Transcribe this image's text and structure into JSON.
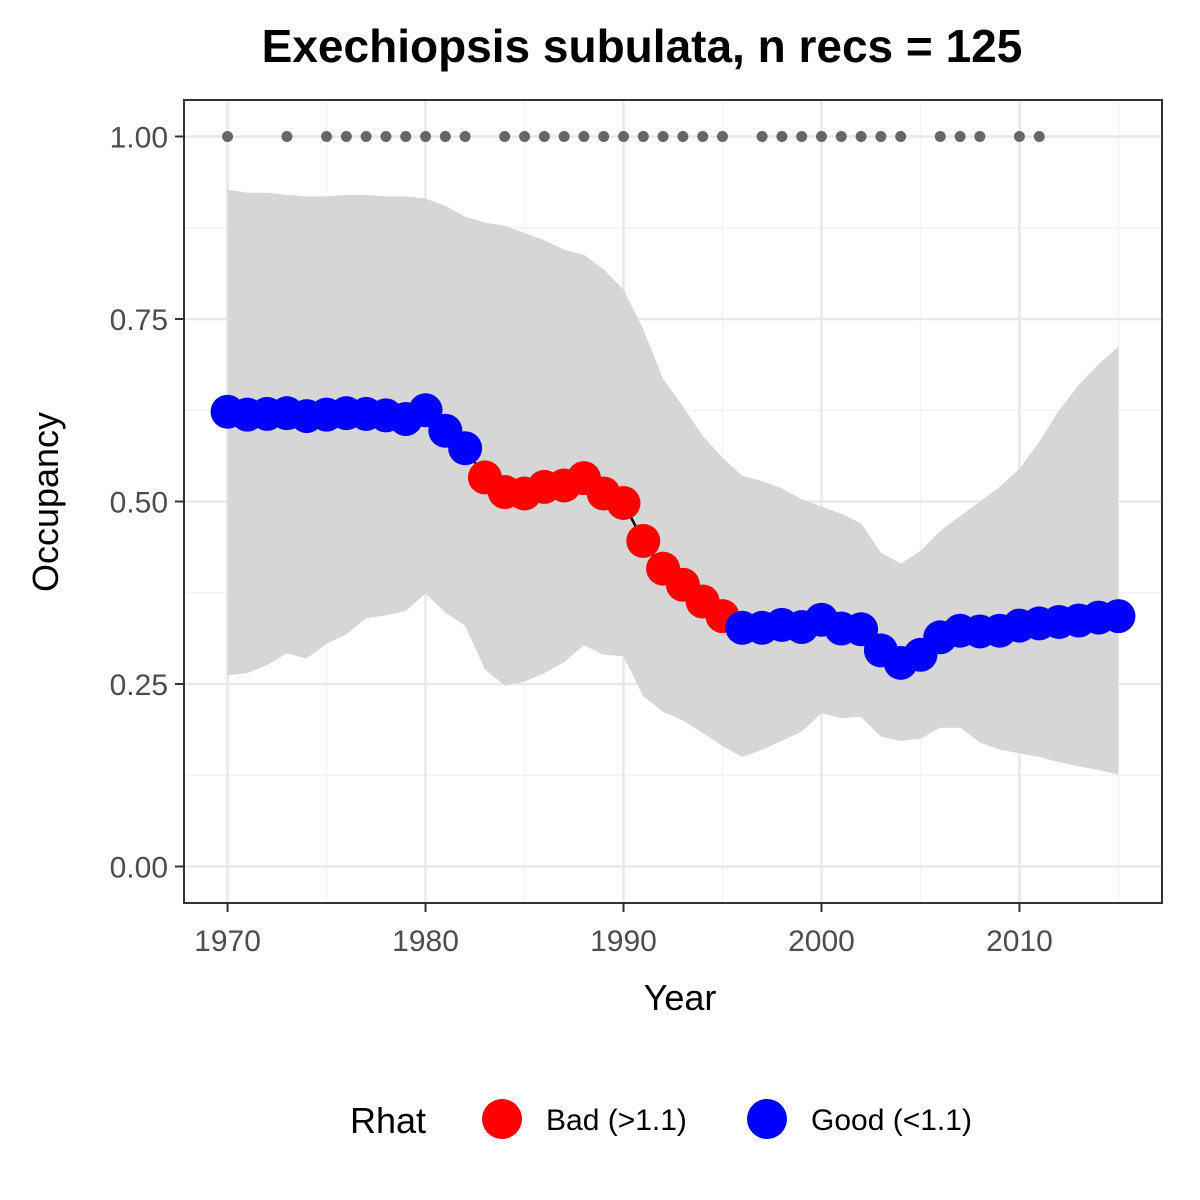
{
  "chart_data": {
    "type": "line",
    "title": "Exechiopsis subulata, n recs = 125",
    "xlabel": "Year",
    "ylabel": "Occupancy",
    "xlim": [
      1967.8,
      2017.2
    ],
    "ylim": [
      -0.05,
      1.05
    ],
    "x_ticks": [
      1970,
      1980,
      1990,
      2000,
      2010
    ],
    "x_tick_labels": [
      "1970",
      "1980",
      "1990",
      "2000",
      "2010"
    ],
    "y_ticks": [
      0,
      0.25,
      0.5,
      0.75,
      1.0
    ],
    "y_tick_labels": [
      "0.00",
      "0.25",
      "0.50",
      "0.75",
      "1.00"
    ],
    "grid": true,
    "x": [
      1970,
      1971,
      1972,
      1973,
      1974,
      1975,
      1976,
      1977,
      1978,
      1979,
      1980,
      1981,
      1982,
      1983,
      1984,
      1985,
      1986,
      1987,
      1988,
      1989,
      1990,
      1991,
      1992,
      1993,
      1994,
      1995,
      1996,
      1997,
      1998,
      1999,
      2000,
      2001,
      2002,
      2003,
      2004,
      2005,
      2006,
      2007,
      2008,
      2009,
      2010,
      2011,
      2012,
      2013,
      2014,
      2015
    ],
    "occupancy": [
      0.623,
      0.619,
      0.62,
      0.621,
      0.617,
      0.619,
      0.621,
      0.62,
      0.618,
      0.613,
      0.625,
      0.597,
      0.573,
      0.533,
      0.513,
      0.511,
      0.52,
      0.522,
      0.532,
      0.511,
      0.498,
      0.446,
      0.408,
      0.386,
      0.363,
      0.343,
      0.327,
      0.327,
      0.331,
      0.328,
      0.338,
      0.326,
      0.325,
      0.296,
      0.279,
      0.29,
      0.314,
      0.323,
      0.322,
      0.323,
      0.33,
      0.333,
      0.335,
      0.337,
      0.341,
      0.343
    ],
    "rhat": [
      "Good",
      "Good",
      "Good",
      "Good",
      "Good",
      "Good",
      "Good",
      "Good",
      "Good",
      "Good",
      "Good",
      "Good",
      "Good",
      "Bad",
      "Bad",
      "Bad",
      "Bad",
      "Bad",
      "Bad",
      "Bad",
      "Bad",
      "Bad",
      "Bad",
      "Bad",
      "Bad",
      "Bad",
      "Good",
      "Good",
      "Good",
      "Good",
      "Good",
      "Good",
      "Good",
      "Good",
      "Good",
      "Good",
      "Good",
      "Good",
      "Good",
      "Good",
      "Good",
      "Good",
      "Good",
      "Good",
      "Good",
      "Good"
    ],
    "lower_ci": [
      0.262,
      0.265,
      0.276,
      0.292,
      0.285,
      0.305,
      0.318,
      0.34,
      0.344,
      0.35,
      0.374,
      0.348,
      0.33,
      0.27,
      0.248,
      0.253,
      0.265,
      0.28,
      0.303,
      0.29,
      0.288,
      0.233,
      0.212,
      0.2,
      0.183,
      0.165,
      0.15,
      0.16,
      0.172,
      0.185,
      0.21,
      0.203,
      0.205,
      0.178,
      0.172,
      0.175,
      0.19,
      0.19,
      0.17,
      0.16,
      0.155,
      0.15,
      0.143,
      0.137,
      0.132,
      0.126
    ],
    "upper_ci": [
      0.927,
      0.923,
      0.923,
      0.92,
      0.918,
      0.918,
      0.92,
      0.92,
      0.918,
      0.918,
      0.915,
      0.905,
      0.89,
      0.882,
      0.878,
      0.868,
      0.858,
      0.845,
      0.838,
      0.818,
      0.79,
      0.736,
      0.668,
      0.63,
      0.59,
      0.56,
      0.535,
      0.528,
      0.518,
      0.503,
      0.493,
      0.483,
      0.47,
      0.43,
      0.415,
      0.432,
      0.46,
      0.48,
      0.5,
      0.52,
      0.545,
      0.582,
      0.625,
      0.66,
      0.688,
      0.712
    ],
    "record_years": [
      1970,
      1973,
      1975,
      1976,
      1977,
      1978,
      1979,
      1980,
      1981,
      1982,
      1984,
      1985,
      1986,
      1987,
      1988,
      1989,
      1990,
      1991,
      1992,
      1993,
      1994,
      1995,
      1997,
      1998,
      1999,
      2000,
      2001,
      2002,
      2003,
      2004,
      2006,
      2007,
      2008,
      2010,
      2011
    ],
    "record_y": 1.0,
    "legend": {
      "title": "Rhat",
      "placement": "bottom",
      "entries": [
        {
          "label": "Bad (>1.1)",
          "color": "#ff0000"
        },
        {
          "label": "Good (<1.1)",
          "color": "#0000ff"
        }
      ]
    },
    "colors": {
      "bad": "#ff0000",
      "good": "#0000ff",
      "ribbon": "#d6d6d6",
      "line": "#000000",
      "records": "#666666",
      "grid_major": "#e8e8e8",
      "grid_minor": "#f3f3f3",
      "panel_border": "#333333"
    }
  }
}
